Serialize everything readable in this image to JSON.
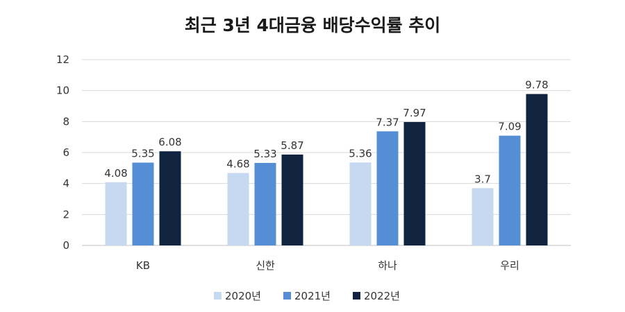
{
  "chart_data": {
    "type": "bar",
    "title": "최근 3년 4대금융 배당수익률 추이",
    "xlabel": "",
    "ylabel": "",
    "ylim": [
      0,
      12
    ],
    "yticks": [
      "0",
      "2",
      "4",
      "6",
      "8",
      "10",
      "12"
    ],
    "categories": [
      "KB",
      "신한",
      "하나",
      "우리"
    ],
    "series": [
      {
        "name": "2020년",
        "values": [
          4.08,
          4.68,
          5.36,
          3.7
        ],
        "labels": [
          "4.08",
          "4.68",
          "5.36",
          "3.7"
        ],
        "color": "#c6d9f1"
      },
      {
        "name": "2021년",
        "values": [
          5.35,
          5.33,
          7.37,
          7.09
        ],
        "labels": [
          "5.35",
          "5.33",
          "7.37",
          "7.09"
        ],
        "color": "#558ed5"
      },
      {
        "name": "2022년",
        "values": [
          6.08,
          5.87,
          7.97,
          9.78
        ],
        "labels": [
          "6.08",
          "5.87",
          "7.97",
          "9.78"
        ],
        "color": "#10243f"
      }
    ],
    "grid": true,
    "legend_position": "bottom"
  }
}
